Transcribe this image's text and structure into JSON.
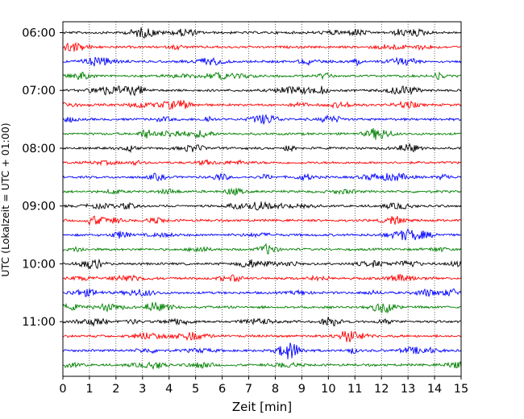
{
  "chart_data": {
    "type": "line",
    "title": "",
    "xlabel": "Zeit  [min]",
    "ylabel": "UTC (Lokalzeit = UTC + 01:00)",
    "xlim": [
      0,
      15
    ],
    "x_ticks": [
      "0",
      "1",
      "2",
      "3",
      "4",
      "5",
      "6",
      "7",
      "8",
      "9",
      "10",
      "11",
      "12",
      "13",
      "14",
      "15"
    ],
    "y_ticks": [
      "06:00",
      "07:00",
      "08:00",
      "09:00",
      "10:00",
      "11:00"
    ],
    "row_start": "06:00",
    "row_interval_minutes": 15,
    "row_count": 24,
    "row_colors": [
      "#000000",
      "#ff0000",
      "#0000ff",
      "#008000"
    ],
    "grid": "vertical dotted lines at each minute",
    "series_description": "seismogram helicorder: each row is 15 minutes of low-amplitude background noise"
  }
}
